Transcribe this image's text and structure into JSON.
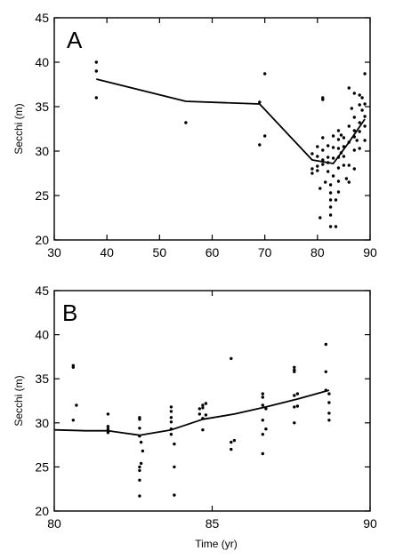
{
  "chart_data": [
    {
      "type": "scatter",
      "panel_label": "A",
      "title": "",
      "xlabel": "",
      "ylabel": "Secchi (m)",
      "xlim": [
        30,
        90
      ],
      "ylim": [
        20,
        45
      ],
      "xticks": [
        30,
        40,
        50,
        60,
        70,
        80,
        90
      ],
      "yticks": [
        20,
        25,
        30,
        35,
        40,
        45
      ],
      "grid": false,
      "trend_line": [
        [
          38,
          38.1
        ],
        [
          55,
          35.6
        ],
        [
          69,
          35.3
        ],
        [
          79,
          29.0
        ],
        [
          81,
          28.8
        ],
        [
          83,
          28.6
        ],
        [
          86,
          31.0
        ],
        [
          89,
          33.6
        ]
      ],
      "points": [
        [
          38,
          40.0
        ],
        [
          38,
          39.0
        ],
        [
          38,
          36.0
        ],
        [
          55,
          33.2
        ],
        [
          69,
          35.5
        ],
        [
          69,
          30.7
        ],
        [
          70,
          38.7
        ],
        [
          70,
          31.7
        ],
        [
          79,
          29.7
        ],
        [
          79,
          28.0
        ],
        [
          79,
          27.5
        ],
        [
          80,
          30.5
        ],
        [
          80,
          29.4
        ],
        [
          80,
          28.3
        ],
        [
          80,
          27.8
        ],
        [
          80.5,
          22.5
        ],
        [
          80.5,
          25.8
        ],
        [
          81,
          36.0
        ],
        [
          81,
          35.8
        ],
        [
          81,
          31.5
        ],
        [
          81,
          30.1
        ],
        [
          81,
          29.0
        ],
        [
          81,
          28.5
        ],
        [
          81.5,
          26.5
        ],
        [
          82,
          30.6
        ],
        [
          82,
          29.3
        ],
        [
          82,
          28.7
        ],
        [
          82,
          27.7
        ],
        [
          82.5,
          26.2
        ],
        [
          82.5,
          25.3
        ],
        [
          82.5,
          24.5
        ],
        [
          82.5,
          23.7
        ],
        [
          82.5,
          22.8
        ],
        [
          82.5,
          21.5
        ],
        [
          83,
          31.7
        ],
        [
          83,
          30.4
        ],
        [
          83,
          29.2
        ],
        [
          83,
          27.2
        ],
        [
          83.5,
          21.5
        ],
        [
          83.5,
          24.5
        ],
        [
          84,
          32.3
        ],
        [
          84,
          31.3
        ],
        [
          84,
          30.3
        ],
        [
          84,
          29.3
        ],
        [
          84,
          28.1
        ],
        [
          84,
          26.6
        ],
        [
          84,
          25.4
        ],
        [
          84.5,
          31.8
        ],
        [
          84.5,
          29.8
        ],
        [
          85,
          31.5
        ],
        [
          85,
          30.5
        ],
        [
          85,
          29.4
        ],
        [
          85,
          28.4
        ],
        [
          85.5,
          26.9
        ],
        [
          86,
          37.1
        ],
        [
          86,
          32.8
        ],
        [
          86,
          31.0
        ],
        [
          86,
          28.4
        ],
        [
          86,
          26.5
        ],
        [
          86.5,
          34.8
        ],
        [
          87,
          36.5
        ],
        [
          87,
          33.8
        ],
        [
          87,
          32.3
        ],
        [
          87,
          31.6
        ],
        [
          87,
          30.1
        ],
        [
          87,
          28.0
        ],
        [
          87.5,
          31.2
        ],
        [
          88,
          36.3
        ],
        [
          88,
          35.2
        ],
        [
          88,
          33.2
        ],
        [
          88,
          32.2
        ],
        [
          88,
          30.3
        ],
        [
          88.5,
          36.0
        ],
        [
          88.5,
          34.6
        ],
        [
          89,
          38.7
        ],
        [
          89,
          35.3
        ],
        [
          89,
          33.9
        ],
        [
          89,
          32.8
        ],
        [
          89,
          31.2
        ]
      ]
    },
    {
      "type": "scatter",
      "panel_label": "B",
      "title": "",
      "xlabel": "Time (yr)",
      "ylabel": "Secchi (m)",
      "xlim": [
        80,
        90
      ],
      "ylim": [
        20,
        45
      ],
      "xticks": [
        80,
        85,
        90
      ],
      "yticks": [
        20,
        25,
        30,
        35,
        40,
        45
      ],
      "grid": false,
      "trend_line": [
        [
          80,
          29.2
        ],
        [
          81,
          29.1
        ],
        [
          81.7,
          29.1
        ],
        [
          82.7,
          28.6
        ],
        [
          83.7,
          29.2
        ],
        [
          84.7,
          30.4
        ],
        [
          85.7,
          31.0
        ],
        [
          86.7,
          31.8
        ],
        [
          87.7,
          32.7
        ],
        [
          88.7,
          33.7
        ]
      ],
      "points": [
        [
          80.6,
          36.5
        ],
        [
          80.6,
          36.3
        ],
        [
          80.6,
          30.3
        ],
        [
          80.7,
          32.0
        ],
        [
          81.7,
          31.0
        ],
        [
          81.7,
          29.6
        ],
        [
          81.7,
          29.3
        ],
        [
          81.7,
          28.9
        ],
        [
          82.7,
          30.6
        ],
        [
          82.7,
          30.4
        ],
        [
          82.7,
          29.4
        ],
        [
          82.7,
          28.5
        ],
        [
          82.75,
          27.8
        ],
        [
          82.75,
          25.4
        ],
        [
          82.7,
          25.0
        ],
        [
          82.7,
          24.6
        ],
        [
          82.8,
          26.8
        ],
        [
          82.7,
          23.5
        ],
        [
          82.7,
          21.7
        ],
        [
          83.7,
          31.8
        ],
        [
          83.7,
          31.3
        ],
        [
          83.7,
          30.6
        ],
        [
          83.7,
          30.1
        ],
        [
          83.7,
          29.3
        ],
        [
          83.7,
          28.7
        ],
        [
          83.8,
          27.6
        ],
        [
          83.8,
          25.0
        ],
        [
          83.8,
          21.8
        ],
        [
          84.6,
          31.6
        ],
        [
          84.6,
          31.0
        ],
        [
          84.7,
          32.0
        ],
        [
          84.7,
          31.7
        ],
        [
          84.7,
          30.5
        ],
        [
          84.7,
          29.2
        ],
        [
          84.8,
          32.2
        ],
        [
          84.8,
          30.9
        ],
        [
          85.6,
          37.3
        ],
        [
          85.6,
          27.8
        ],
        [
          85.6,
          27.0
        ],
        [
          85.7,
          28.0
        ],
        [
          86.6,
          33.3
        ],
        [
          86.6,
          32.9
        ],
        [
          86.6,
          32.0
        ],
        [
          86.6,
          30.3
        ],
        [
          86.6,
          28.7
        ],
        [
          86.6,
          26.5
        ],
        [
          86.7,
          31.6
        ],
        [
          86.7,
          29.3
        ],
        [
          87.6,
          36.3
        ],
        [
          87.6,
          36.0
        ],
        [
          87.6,
          35.8
        ],
        [
          87.6,
          33.1
        ],
        [
          87.6,
          31.8
        ],
        [
          87.6,
          30.0
        ],
        [
          87.7,
          33.3
        ],
        [
          87.7,
          31.9
        ],
        [
          88.6,
          38.9
        ],
        [
          88.6,
          35.8
        ],
        [
          88.6,
          33.7
        ],
        [
          88.7,
          33.3
        ],
        [
          88.7,
          32.3
        ],
        [
          88.7,
          31.1
        ],
        [
          88.7,
          30.3
        ]
      ]
    }
  ]
}
